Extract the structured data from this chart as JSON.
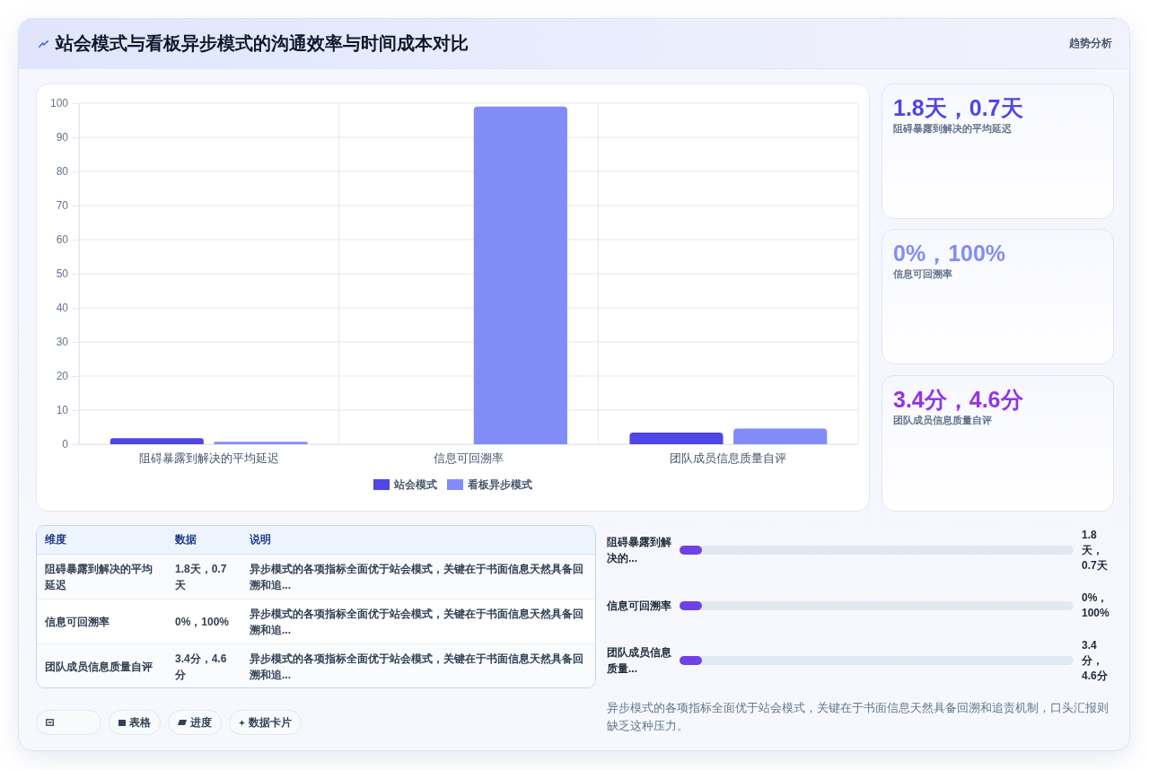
{
  "chart_data": [
    {
      "type": "other",
      "title": "站会模式与看板异步模式的沟通效率与时间成本对比",
      "subtitle": "趋势分析"
    },
    {
      "type": "bar",
      "categories": [
        "阻碍暴露到解决的平均延迟",
        "信息可回溯率",
        "团队成员信息质量自评"
      ],
      "series": [
        {
          "name": "站会模式",
          "color": "#4f46e5",
          "values": [
            1.8,
            0,
            3.4
          ]
        },
        {
          "name": "看板异步模式",
          "color": "#818cf8",
          "values": [
            0.7,
            99,
            4.6
          ]
        }
      ],
      "ylim": [
        0,
        100
      ],
      "yticks": [
        0,
        10,
        20,
        30,
        40,
        50,
        60,
        70,
        80,
        90,
        100
      ],
      "grid": true,
      "legend": "bottom"
    },
    {
      "type": "other",
      "annotations": [
        "1.8天，0.7天",
        "阻碍暴露到解决的平均延迟",
        "0%，100%",
        "信息可回溯率",
        "3.4分，4.6分",
        "团队成员信息质量自评"
      ]
    },
    {
      "type": "other",
      "annotations": [
        "维度",
        "数据",
        "说明",
        "阻碍暴露到解决的平均延迟",
        "1.8天，0.7天",
        "异步模式的各项指标全面优于站会模式，关键在于书面信息天然具备回溯和追...",
        "信息可回溯率",
        "0%，100%",
        "异步模式的各项指标全面优于站会模式，关键在于书面信息天然具备回溯和追...",
        "团队成员信息质量自评",
        "3.4分，4.6分",
        "异步模式的各项指标全面优于站会模式，关键在于书面信息天然具备回溯和追..."
      ]
    },
    {
      "type": "other",
      "annotations": [
        "阻碍暴露到解决的...",
        "1.8天，0.7天",
        "信息可回溯率",
        "0%，100%",
        "团队成员信息质量...",
        "3.4分，4.6分"
      ]
    },
    {
      "type": "other",
      "annotations": [
        "表格",
        "进度",
        "数据卡片"
      ]
    },
    {
      "type": "other",
      "annotations": [
        "异步模式的各项指标全面优于站会模式，关键在于书面信息天然具备回溯和追责机制，口头汇报则缺乏这种压力。"
      ]
    }
  ]
}
